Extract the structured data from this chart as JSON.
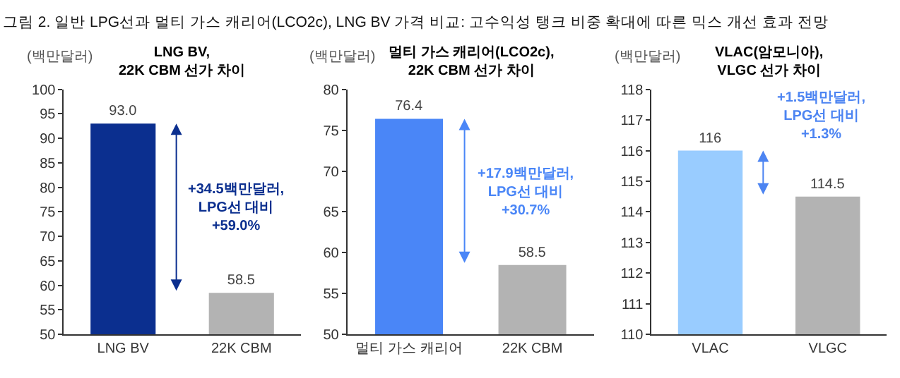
{
  "chart_data": [
    {
      "type": "bar",
      "title": "LNG BV,\n22K CBM 선가 차이",
      "ylabel": "(백만달러)",
      "categories": [
        "LNG BV",
        "22K CBM"
      ],
      "values": [
        93.0,
        58.5
      ],
      "colors": [
        "#0b2f8f",
        "#b3b3b3"
      ],
      "value_labels": [
        "93.0",
        "58.5"
      ],
      "ylim": [
        50,
        100
      ],
      "yticks": [
        50,
        55,
        60,
        65,
        70,
        75,
        80,
        85,
        90,
        95,
        100
      ],
      "grid": false,
      "legend": false,
      "annotations": [
        "그림 2. 일반 LPG선과 멀티 가스 캐리어(LCO2c), LNG BV 가격 비교: 고수익성 탱크 비중 확대에 따른 믹스 개선 효과 전망",
        "+34.5백만달러,\nLPG선 대비\n+59.0%"
      ]
    },
    {
      "type": "bar",
      "title": "멀티 가스 캐리어(LCO2c),\n22K CBM 선가 차이",
      "ylabel": "(백만달러)",
      "categories": [
        "멀티 가스 캐리어",
        "22K CBM"
      ],
      "values": [
        76.4,
        58.5
      ],
      "colors": [
        "#4a86f7",
        "#b3b3b3"
      ],
      "value_labels": [
        "76.4",
        "58.5"
      ],
      "ylim": [
        50,
        80
      ],
      "yticks": [
        50,
        55,
        60,
        65,
        70,
        75,
        80
      ],
      "grid": false,
      "legend": false,
      "annotations": [
        "+17.9백만달러,\nLPG선 대비\n+30.7%"
      ]
    },
    {
      "type": "bar",
      "title": "VLAC(암모니아),\nVLGC 선가 차이",
      "ylabel": "(백만달러)",
      "categories": [
        "VLAC",
        "VLGC"
      ],
      "values": [
        116,
        114.5
      ],
      "colors": [
        "#99ccff",
        "#b3b3b3"
      ],
      "value_labels": [
        "116",
        "114.5"
      ],
      "ylim": [
        110,
        118
      ],
      "yticks": [
        110,
        111,
        112,
        113,
        114,
        115,
        116,
        117,
        118
      ],
      "grid": false,
      "legend": false,
      "annotations": [
        "+1.5백만달러,\nLPG선 대비\n+1.3%"
      ]
    }
  ]
}
